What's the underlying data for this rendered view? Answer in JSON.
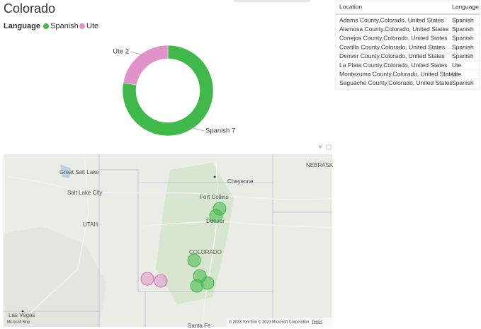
{
  "title": "Colorado",
  "chart_data": {
    "type": "donut",
    "legend_title": "Language",
    "categories": [
      "Spanish",
      "Ute"
    ],
    "values": [
      7,
      2
    ],
    "value_labels": [
      "Spanish 7",
      "Ute 2"
    ],
    "colors": [
      "#41b94a",
      "#e092c9"
    ]
  },
  "table": {
    "columns": [
      "Location",
      "Language"
    ],
    "rows": [
      [
        "Adams County,Colorado, United States",
        "Spanish"
      ],
      [
        "Alamosa County,Colorado, United States",
        "Spanish"
      ],
      [
        "Conejos County,Colorado, United States",
        "Spanish"
      ],
      [
        "Costilla County,Colorado, United States",
        "Spanish"
      ],
      [
        "Denver County,Colorado, United States",
        "Spanish"
      ],
      [
        "La Plata County,Colorado, United States",
        "Ute"
      ],
      [
        "Montezuma County,Colorado, United States",
        "Ute"
      ],
      [
        "Saguache County,Colorado, United States",
        "Spanish"
      ]
    ]
  },
  "map": {
    "labels": [
      "Great Salt Lake",
      "Salt Lake City",
      "UTAH",
      "Cheyenne",
      "Fort Collins",
      "Denver",
      "COLORADO",
      "NEBRASK",
      "Las Vegas",
      "Santa Fe"
    ],
    "attribution": "© 2023 TomTom  © 2023 Microsoft Corporation",
    "terms": "Terms",
    "provider": "Microsoft Bing"
  }
}
